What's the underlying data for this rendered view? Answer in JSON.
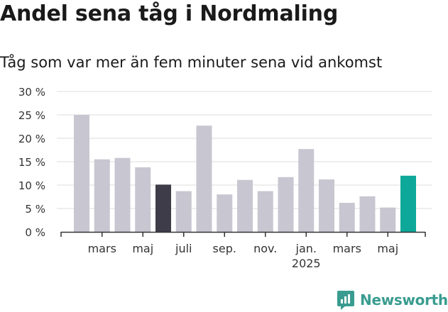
{
  "header": {
    "title": "Andel sena tåg i Nordmaling",
    "subtitle": "Tåg som var mer än fem minuter sena vid ankomst"
  },
  "brand": {
    "name": "Newsworthy",
    "icon": "newsworthy-logo-icon"
  },
  "colors": {
    "default_bar": "#c8c6d0",
    "highlight_dark": "#3d3c48",
    "highlight_teal": "#0ea89a",
    "grid": "#dddddd",
    "axis": "#333333",
    "brand": "#3a9c90"
  },
  "chart_data": {
    "type": "bar",
    "ylim": [
      0,
      30
    ],
    "yticks": [
      0,
      5,
      10,
      15,
      20,
      25,
      30
    ],
    "ytick_labels": [
      "0 %",
      "5 %",
      "10 %",
      "15 %",
      "20 %",
      "25 %",
      "30 %"
    ],
    "grid": true,
    "x_labels": [
      {
        "index": 1,
        "label": "mars"
      },
      {
        "index": 3,
        "label": "maj"
      },
      {
        "index": 5,
        "label": "juli"
      },
      {
        "index": 7,
        "label": "sep."
      },
      {
        "index": 9,
        "label": "nov."
      },
      {
        "index": 11,
        "label": "jan.",
        "sublabel": "2025"
      },
      {
        "index": 13,
        "label": "mars"
      },
      {
        "index": 15,
        "label": "maj"
      }
    ],
    "values": [
      25.0,
      15.5,
      15.8,
      13.8,
      10.1,
      8.7,
      22.7,
      8.0,
      11.1,
      8.7,
      11.7,
      17.7,
      11.2,
      6.2,
      7.6,
      5.2,
      12.0
    ],
    "highlights": {
      "4": "dark",
      "16": "teal"
    }
  }
}
